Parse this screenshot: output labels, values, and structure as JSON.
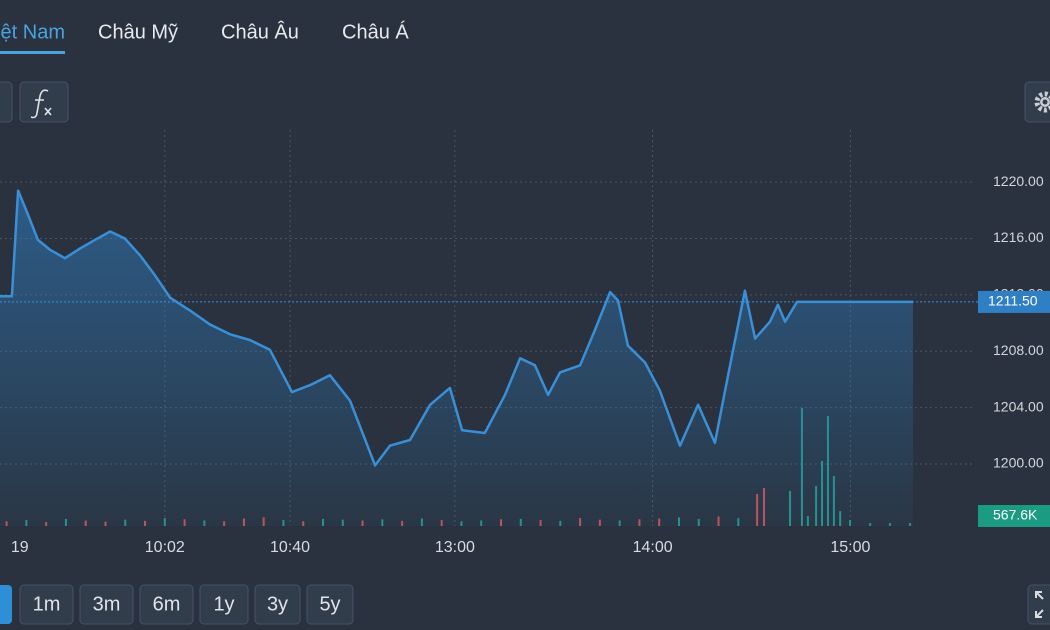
{
  "tabs": [
    "Việt Nam",
    "Châu Mỹ",
    "Châu Âu",
    "Châu Á"
  ],
  "ranges": [
    "1m",
    "3m",
    "6m",
    "1y",
    "3y",
    "5y"
  ],
  "chart_data": {
    "type": "line",
    "x": [
      -3,
      0.6,
      2.5,
      5.5,
      8.5,
      12.2,
      16.7,
      21.3,
      25.8,
      30.4,
      34.9,
      39.5,
      44.0,
      48.6,
      54.6,
      60.7,
      66.8,
      72.8,
      78.9,
      85.6,
      91.1,
      97.1,
      103.2,
      110.8,
      115.3,
      121.4,
      127.5,
      133.5,
      137.2,
      144.1,
      150.2,
      154.8,
      159.3,
      163.3,
      166.9,
      173.0,
      177.5,
      182.1,
      184.5,
      187.5,
      192.7,
      197.2,
      203.3,
      208.8,
      213.9,
      217.9,
      223.0,
      226.1,
      230.6,
      233.0,
      235.2,
      238.8,
      274
    ],
    "values": [
      1211.9,
      1211.9,
      1219.4,
      1217.7,
      1215.9,
      1215.2,
      1214.6,
      1215.3,
      1215.9,
      1216.5,
      1216.0,
      1214.8,
      1213.4,
      1211.8,
      1210.9,
      1209.9,
      1209.2,
      1208.8,
      1208.1,
      1205.1,
      1205.6,
      1206.3,
      1204.5,
      1199.9,
      1201.3,
      1201.7,
      1204.2,
      1205.4,
      1202.4,
      1202.2,
      1204.9,
      1207.5,
      1207.0,
      1204.9,
      1206.5,
      1207.0,
      1209.5,
      1212.2,
      1211.6,
      1208.4,
      1207.2,
      1205.2,
      1201.3,
      1204.2,
      1201.5,
      1206.3,
      1212.3,
      1208.9,
      1210.1,
      1211.3,
      1210.1,
      1211.5,
      1211.5
    ],
    "color": "#3a8fd6",
    "xlim": [
      -3,
      274
    ],
    "ylim": [
      1195.6,
      1223.7
    ],
    "xticks": [
      {
        "value": 3,
        "label": "19"
      },
      {
        "value": 47,
        "label": "10:02"
      },
      {
        "value": 85,
        "label": "10:40"
      },
      {
        "value": 135,
        "label": "13:00"
      },
      {
        "value": 195,
        "label": "14:00"
      },
      {
        "value": 255,
        "label": "15:00"
      }
    ],
    "yticks": [
      {
        "value": 1200,
        "label": "1200.00"
      },
      {
        "value": 1204,
        "label": "1204.00"
      },
      {
        "value": 1208,
        "label": "1208.00"
      },
      {
        "value": 1212,
        "label": "1212.00"
      },
      {
        "value": 1216,
        "label": "1216.00"
      },
      {
        "value": 1220,
        "label": "1220.00"
      }
    ],
    "grid": true,
    "current_price": {
      "value": 1211.5,
      "label": "1211.50"
    },
    "volume_label": "567.6K",
    "y2lim": [
      0,
      5000
    ],
    "volume": {
      "x": [
        -1,
        5,
        11,
        17,
        23,
        29,
        35,
        41,
        47,
        53,
        59,
        65,
        71,
        77,
        83,
        89,
        95,
        101,
        107,
        113,
        119,
        125,
        131,
        137,
        143,
        149,
        155,
        161,
        167,
        173,
        179,
        185,
        191,
        197,
        203,
        209,
        215,
        221,
        226.7,
        228.8,
        236.7,
        240.3,
        242.1,
        244.6,
        246.4,
        248.2,
        250.0,
        251.9,
        254.9,
        261.0,
        267.0,
        273.1
      ],
      "values": [
        60,
        75,
        50,
        90,
        70,
        55,
        80,
        65,
        100,
        85,
        70,
        60,
        95,
        110,
        75,
        60,
        90,
        80,
        70,
        85,
        65,
        95,
        75,
        60,
        70,
        85,
        90,
        75,
        65,
        100,
        80,
        70,
        85,
        95,
        110,
        90,
        120,
        100,
        404,
        480,
        442,
        1490,
        126,
        505,
        821,
        1389,
        631,
        189,
        76,
        38,
        38,
        38
      ],
      "colors": [
        "#e0575b",
        "#26a69a",
        "#e0575b",
        "#26a69a",
        "#e0575b",
        "#e0575b",
        "#26a69a",
        "#e0575b",
        "#26a69a",
        "#e0575b",
        "#26a69a",
        "#e0575b",
        "#e0575b",
        "#e0575b",
        "#26a69a",
        "#e0575b",
        "#26a69a",
        "#26a69a",
        "#e0575b",
        "#26a69a",
        "#e0575b",
        "#26a69a",
        "#e0575b",
        "#26a69a",
        "#26a69a",
        "#e0575b",
        "#26a69a",
        "#e0575b",
        "#26a69a",
        "#e0575b",
        "#e0575b",
        "#26a69a",
        "#e0575b",
        "#e0575b",
        "#26a69a",
        "#26a69a",
        "#e0575b",
        "#26a69a",
        "#e0575b",
        "#e0575b",
        "#26a69a",
        "#26a69a",
        "#26a69a",
        "#26a69a",
        "#26a69a",
        "#26a69a",
        "#26a69a",
        "#26a69a",
        "#26a69a",
        "#26a69a",
        "#26a69a",
        "#26a69a"
      ]
    }
  }
}
